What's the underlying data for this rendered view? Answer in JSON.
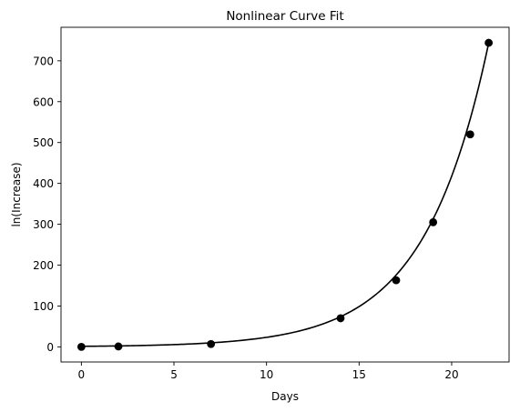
{
  "chart_data": {
    "type": "scatter",
    "title": "Nonlinear Curve Fit",
    "xlabel": "Days",
    "ylabel": "ln(Increase)",
    "xlim": [
      -1.1,
      23.1
    ],
    "ylim": [
      -37,
      782
    ],
    "xticks": [
      0,
      5,
      10,
      15,
      20
    ],
    "yticks": [
      0,
      100,
      200,
      300,
      400,
      500,
      600,
      700
    ],
    "grid": false,
    "legend": "none",
    "colors": {
      "points": "#000000",
      "curve": "#000000"
    },
    "points": {
      "x": [
        0,
        2,
        7,
        14,
        17,
        19,
        21,
        22
      ],
      "y": [
        0,
        1,
        7,
        70,
        163,
        305,
        520,
        744
      ]
    },
    "fit_curve": {
      "type": "exponential",
      "x_range": [
        0,
        22
      ],
      "y_at_start": 1.3,
      "y_at_end": 744
    }
  }
}
